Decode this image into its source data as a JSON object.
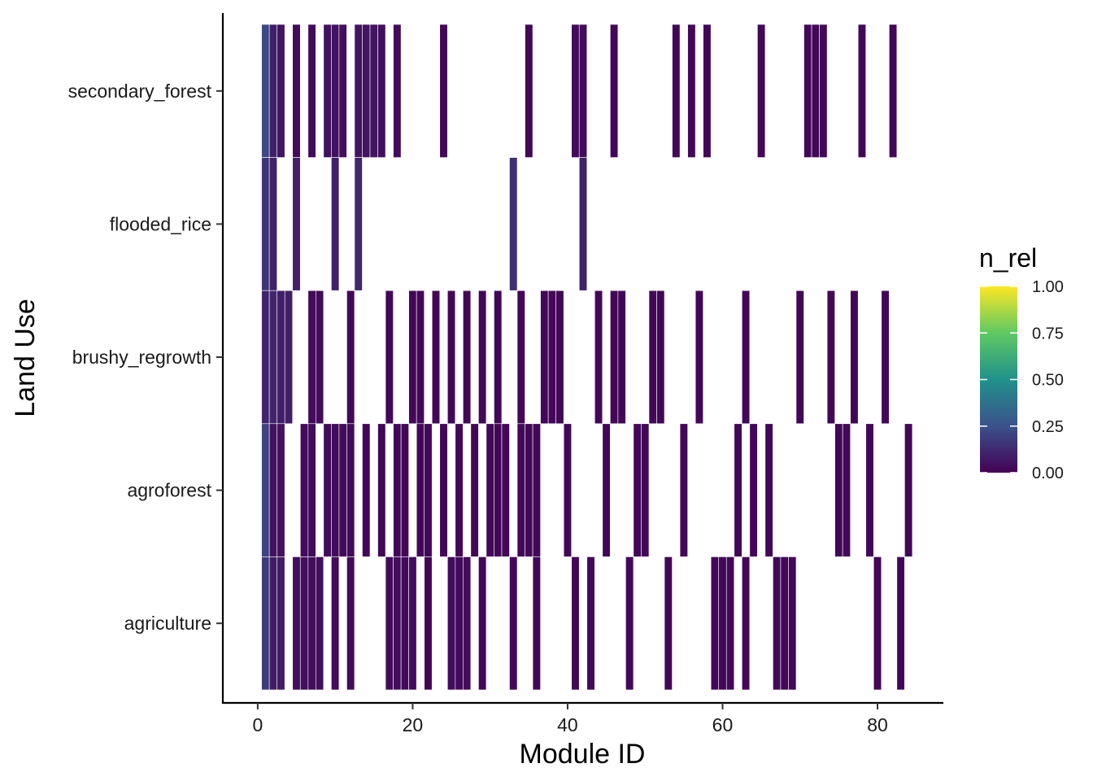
{
  "chart_data": {
    "type": "heatmap",
    "xlabel": "Module ID",
    "ylabel": "Land Use",
    "xlim": [
      -4.5,
      88.5
    ],
    "x_ticks": [
      "0",
      "20",
      "40",
      "60",
      "80"
    ],
    "x_tick_values": [
      0,
      20,
      40,
      60,
      80
    ],
    "y_categories": [
      "agriculture",
      "agroforest",
      "brushy_regrowth",
      "flooded_rice",
      "secondary_forest"
    ],
    "legend": {
      "title": "n_rel",
      "position": "right",
      "breaks": [
        "0.00",
        "0.25",
        "0.50",
        "0.75",
        "1.00"
      ],
      "break_values": [
        0,
        0.25,
        0.5,
        0.75,
        1
      ],
      "palette": [
        "#440154",
        "#3b528b",
        "#21918c",
        "#5ec962",
        "#fde725"
      ]
    },
    "grid": false,
    "tile_border": "#ffffff",
    "series": [
      {
        "category": "secondary_forest",
        "cells": [
          {
            "x": 1,
            "v": 0.22
          },
          {
            "x": 2,
            "v": 0.09
          },
          {
            "x": 3,
            "v": 0.06
          },
          {
            "x": 5,
            "v": 0.03
          },
          {
            "x": 7,
            "v": 0.03
          },
          {
            "x": 9,
            "v": 0.05
          },
          {
            "x": 10,
            "v": 0.05
          },
          {
            "x": 11,
            "v": 0.04
          },
          {
            "x": 13,
            "v": 0.06
          },
          {
            "x": 14,
            "v": 0.06
          },
          {
            "x": 15,
            "v": 0.06
          },
          {
            "x": 16,
            "v": 0.04
          },
          {
            "x": 18,
            "v": 0.03
          },
          {
            "x": 24,
            "v": 0.02
          },
          {
            "x": 35,
            "v": 0.02
          },
          {
            "x": 41,
            "v": 0.03
          },
          {
            "x": 42,
            "v": 0.03
          },
          {
            "x": 46,
            "v": 0.02
          },
          {
            "x": 54,
            "v": 0.02
          },
          {
            "x": 56,
            "v": 0.02
          },
          {
            "x": 58,
            "v": 0.02
          },
          {
            "x": 65,
            "v": 0.02
          },
          {
            "x": 71,
            "v": 0.02
          },
          {
            "x": 72,
            "v": 0.02
          },
          {
            "x": 73,
            "v": 0.02
          },
          {
            "x": 78,
            "v": 0.02
          },
          {
            "x": 82,
            "v": 0.02
          }
        ]
      },
      {
        "category": "flooded_rice",
        "cells": [
          {
            "x": 1,
            "v": 0.16
          },
          {
            "x": 2,
            "v": 0.1
          },
          {
            "x": 5,
            "v": 0.1
          },
          {
            "x": 10,
            "v": 0.1
          },
          {
            "x": 13,
            "v": 0.12
          },
          {
            "x": 33,
            "v": 0.14
          },
          {
            "x": 42,
            "v": 0.1
          }
        ]
      },
      {
        "category": "brushy_regrowth",
        "cells": [
          {
            "x": 1,
            "v": 0.11
          },
          {
            "x": 2,
            "v": 0.11
          },
          {
            "x": 3,
            "v": 0.09
          },
          {
            "x": 4,
            "v": 0.09
          },
          {
            "x": 7,
            "v": 0.03
          },
          {
            "x": 8,
            "v": 0.03
          },
          {
            "x": 12,
            "v": 0.02
          },
          {
            "x": 17,
            "v": 0.02
          },
          {
            "x": 20,
            "v": 0.02
          },
          {
            "x": 21,
            "v": 0.02
          },
          {
            "x": 23,
            "v": 0.02
          },
          {
            "x": 25,
            "v": 0.02
          },
          {
            "x": 27,
            "v": 0.02
          },
          {
            "x": 29,
            "v": 0.02
          },
          {
            "x": 31,
            "v": 0.02
          },
          {
            "x": 34,
            "v": 0.02
          },
          {
            "x": 37,
            "v": 0.02
          },
          {
            "x": 38,
            "v": 0.02
          },
          {
            "x": 39,
            "v": 0.02
          },
          {
            "x": 44,
            "v": 0.02
          },
          {
            "x": 46,
            "v": 0.02
          },
          {
            "x": 47,
            "v": 0.02
          },
          {
            "x": 51,
            "v": 0.02
          },
          {
            "x": 52,
            "v": 0.02
          },
          {
            "x": 57,
            "v": 0.02
          },
          {
            "x": 63,
            "v": 0.02
          },
          {
            "x": 70,
            "v": 0.02
          },
          {
            "x": 74,
            "v": 0.02
          },
          {
            "x": 77,
            "v": 0.02
          },
          {
            "x": 81,
            "v": 0.02
          }
        ]
      },
      {
        "category": "agroforest",
        "cells": [
          {
            "x": 1,
            "v": 0.2
          },
          {
            "x": 2,
            "v": 0.05
          },
          {
            "x": 3,
            "v": 0.05
          },
          {
            "x": 6,
            "v": 0.03
          },
          {
            "x": 7,
            "v": 0.03
          },
          {
            "x": 9,
            "v": 0.03
          },
          {
            "x": 10,
            "v": 0.03
          },
          {
            "x": 11,
            "v": 0.03
          },
          {
            "x": 12,
            "v": 0.03
          },
          {
            "x": 14,
            "v": 0.02
          },
          {
            "x": 16,
            "v": 0.02
          },
          {
            "x": 18,
            "v": 0.02
          },
          {
            "x": 19,
            "v": 0.02
          },
          {
            "x": 21,
            "v": 0.02
          },
          {
            "x": 22,
            "v": 0.02
          },
          {
            "x": 24,
            "v": 0.02
          },
          {
            "x": 26,
            "v": 0.02
          },
          {
            "x": 28,
            "v": 0.02
          },
          {
            "x": 30,
            "v": 0.02
          },
          {
            "x": 31,
            "v": 0.02
          },
          {
            "x": 32,
            "v": 0.02
          },
          {
            "x": 34,
            "v": 0.02
          },
          {
            "x": 35,
            "v": 0.02
          },
          {
            "x": 36,
            "v": 0.02
          },
          {
            "x": 40,
            "v": 0.02
          },
          {
            "x": 45,
            "v": 0.02
          },
          {
            "x": 49,
            "v": 0.02
          },
          {
            "x": 50,
            "v": 0.02
          },
          {
            "x": 55,
            "v": 0.02
          },
          {
            "x": 62,
            "v": 0.02
          },
          {
            "x": 64,
            "v": 0.02
          },
          {
            "x": 66,
            "v": 0.02
          },
          {
            "x": 75,
            "v": 0.02
          },
          {
            "x": 76,
            "v": 0.02
          },
          {
            "x": 79,
            "v": 0.02
          },
          {
            "x": 84,
            "v": 0.02
          }
        ]
      },
      {
        "category": "agriculture",
        "cells": [
          {
            "x": 1,
            "v": 0.18
          },
          {
            "x": 2,
            "v": 0.08
          },
          {
            "x": 3,
            "v": 0.08
          },
          {
            "x": 5,
            "v": 0.04
          },
          {
            "x": 6,
            "v": 0.04
          },
          {
            "x": 7,
            "v": 0.04
          },
          {
            "x": 8,
            "v": 0.04
          },
          {
            "x": 10,
            "v": 0.03
          },
          {
            "x": 12,
            "v": 0.03
          },
          {
            "x": 17,
            "v": 0.03
          },
          {
            "x": 18,
            "v": 0.03
          },
          {
            "x": 19,
            "v": 0.03
          },
          {
            "x": 20,
            "v": 0.03
          },
          {
            "x": 22,
            "v": 0.02
          },
          {
            "x": 25,
            "v": 0.03
          },
          {
            "x": 26,
            "v": 0.03
          },
          {
            "x": 27,
            "v": 0.03
          },
          {
            "x": 29,
            "v": 0.02
          },
          {
            "x": 33,
            "v": 0.02
          },
          {
            "x": 36,
            "v": 0.02
          },
          {
            "x": 41,
            "v": 0.02
          },
          {
            "x": 43,
            "v": 0.02
          },
          {
            "x": 48,
            "v": 0.02
          },
          {
            "x": 53,
            "v": 0.02
          },
          {
            "x": 59,
            "v": 0.02
          },
          {
            "x": 60,
            "v": 0.02
          },
          {
            "x": 61,
            "v": 0.02
          },
          {
            "x": 63,
            "v": 0.02
          },
          {
            "x": 67,
            "v": 0.02
          },
          {
            "x": 68,
            "v": 0.02
          },
          {
            "x": 69,
            "v": 0.02
          },
          {
            "x": 80,
            "v": 0.02
          },
          {
            "x": 83,
            "v": 0.02
          }
        ]
      }
    ]
  }
}
